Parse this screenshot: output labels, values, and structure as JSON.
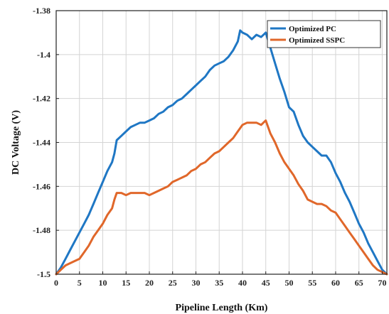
{
  "chart_data": {
    "type": "line",
    "title": "",
    "xlabel": "Pipeline Length (Km)",
    "ylabel": "DC Voltage  (V)",
    "xlim": [
      0,
      71
    ],
    "ylim": [
      -1.5,
      -1.38
    ],
    "xticks": [
      0,
      5,
      10,
      15,
      20,
      25,
      30,
      35,
      40,
      45,
      50,
      55,
      60,
      65,
      70
    ],
    "yticks": [
      -1.5,
      -1.48,
      -1.46,
      -1.44,
      -1.42,
      -1.4,
      -1.38
    ],
    "grid": true,
    "legend_position": "top-right",
    "series": [
      {
        "name": "Optimized PC",
        "color": "#1f77c4",
        "x": [
          0,
          1,
          2,
          3,
          4,
          5,
          6,
          7,
          8,
          9,
          10,
          11,
          12,
          12.5,
          13,
          14,
          15,
          16,
          17,
          18,
          19,
          20,
          21,
          22,
          23,
          24,
          25,
          26,
          27,
          28,
          29,
          30,
          31,
          32,
          33,
          34,
          35,
          36,
          37,
          38,
          39,
          39.5,
          40,
          41,
          42,
          43,
          44,
          45,
          46,
          47,
          48,
          49,
          50,
          51,
          52,
          53,
          54,
          55,
          56,
          57,
          58,
          59,
          60,
          61,
          62,
          63,
          64,
          65,
          66,
          67,
          68,
          69,
          70,
          71
        ],
        "y": [
          -1.5,
          -1.497,
          -1.493,
          -1.489,
          -1.485,
          -1.481,
          -1.477,
          -1.473,
          -1.468,
          -1.463,
          -1.458,
          -1.453,
          -1.449,
          -1.445,
          -1.439,
          -1.437,
          -1.435,
          -1.433,
          -1.432,
          -1.431,
          -1.431,
          -1.43,
          -1.429,
          -1.427,
          -1.426,
          -1.424,
          -1.423,
          -1.421,
          -1.42,
          -1.418,
          -1.416,
          -1.414,
          -1.412,
          -1.41,
          -1.407,
          -1.405,
          -1.404,
          -1.403,
          -1.401,
          -1.398,
          -1.394,
          -1.389,
          -1.39,
          -1.391,
          -1.393,
          -1.391,
          -1.392,
          -1.39,
          -1.397,
          -1.404,
          -1.411,
          -1.417,
          -1.424,
          -1.426,
          -1.432,
          -1.437,
          -1.44,
          -1.442,
          -1.444,
          -1.446,
          -1.446,
          -1.449,
          -1.454,
          -1.458,
          -1.463,
          -1.467,
          -1.472,
          -1.477,
          -1.481,
          -1.486,
          -1.49,
          -1.494,
          -1.498,
          -1.5
        ]
      },
      {
        "name": "Optimized SSPC",
        "color": "#e0672a",
        "x": [
          0,
          1,
          2,
          3,
          4,
          5,
          6,
          7,
          8,
          9,
          10,
          11,
          12,
          12.5,
          13,
          14,
          15,
          16,
          17,
          18,
          19,
          20,
          21,
          22,
          23,
          24,
          25,
          26,
          27,
          28,
          29,
          30,
          31,
          32,
          33,
          34,
          35,
          36,
          37,
          38,
          39,
          40,
          41,
          42,
          43,
          44,
          44.5,
          45,
          46,
          47,
          48,
          49,
          50,
          51,
          52,
          53,
          54,
          55,
          56,
          57,
          58,
          59,
          60,
          61,
          62,
          63,
          64,
          65,
          66,
          67,
          68,
          69,
          70,
          71
        ],
        "y": [
          -1.5,
          -1.498,
          -1.496,
          -1.495,
          -1.494,
          -1.493,
          -1.49,
          -1.487,
          -1.483,
          -1.48,
          -1.477,
          -1.473,
          -1.47,
          -1.466,
          -1.463,
          -1.463,
          -1.464,
          -1.463,
          -1.463,
          -1.463,
          -1.463,
          -1.464,
          -1.463,
          -1.462,
          -1.461,
          -1.46,
          -1.458,
          -1.457,
          -1.456,
          -1.455,
          -1.453,
          -1.452,
          -1.45,
          -1.449,
          -1.447,
          -1.445,
          -1.444,
          -1.442,
          -1.44,
          -1.438,
          -1.435,
          -1.432,
          -1.431,
          -1.431,
          -1.431,
          -1.432,
          -1.431,
          -1.43,
          -1.436,
          -1.44,
          -1.445,
          -1.449,
          -1.452,
          -1.455,
          -1.459,
          -1.462,
          -1.466,
          -1.467,
          -1.468,
          -1.468,
          -1.469,
          -1.471,
          -1.472,
          -1.475,
          -1.478,
          -1.481,
          -1.484,
          -1.487,
          -1.49,
          -1.493,
          -1.496,
          -1.498,
          -1.499,
          -1.5
        ]
      }
    ]
  }
}
